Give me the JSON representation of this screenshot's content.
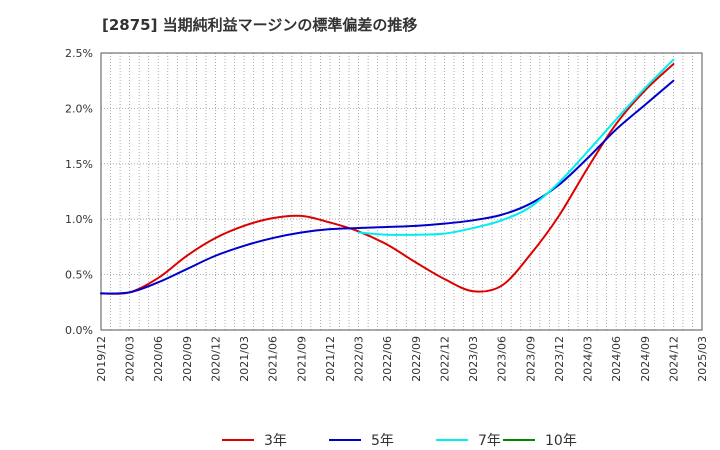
{
  "chart_data": {
    "type": "line",
    "title": "[2875]  当期純利益マージンの標準偏差の推移",
    "xlabel": "",
    "ylabel": "",
    "ylim": [
      0,
      2.5
    ],
    "yticks": [
      "0.0%",
      "0.5%",
      "1.0%",
      "1.5%",
      "2.0%",
      "2.5%"
    ],
    "grid": true,
    "legend_position": "bottom",
    "x_start": "2019/12",
    "x_end": "2025/03",
    "xticks": [
      "2019/12",
      "2020/03",
      "2020/06",
      "2020/09",
      "2020/12",
      "2021/03",
      "2021/06",
      "2021/09",
      "2021/12",
      "2022/03",
      "2022/06",
      "2022/09",
      "2022/12",
      "2023/03",
      "2023/06",
      "2023/09",
      "2023/12",
      "2024/03",
      "2024/06",
      "2024/09",
      "2024/12",
      "2025/03"
    ],
    "series": [
      {
        "name": "3年",
        "color": "#dd0000",
        "points": [
          [
            "2019/12",
            0.33
          ],
          [
            "2020/03",
            0.34
          ],
          [
            "2020/06",
            0.47
          ],
          [
            "2020/09",
            0.67
          ],
          [
            "2020/12",
            0.83
          ],
          [
            "2021/03",
            0.94
          ],
          [
            "2021/06",
            1.01
          ],
          [
            "2021/09",
            1.03
          ],
          [
            "2021/12",
            0.97
          ],
          [
            "2022/03",
            0.89
          ],
          [
            "2022/06",
            0.77
          ],
          [
            "2022/09",
            0.61
          ],
          [
            "2022/12",
            0.46
          ],
          [
            "2023/03",
            0.35
          ],
          [
            "2023/06",
            0.4
          ],
          [
            "2023/09",
            0.68
          ],
          [
            "2023/12",
            1.03
          ],
          [
            "2024/03",
            1.46
          ],
          [
            "2024/06",
            1.86
          ],
          [
            "2024/09",
            2.16
          ],
          [
            "2024/12",
            2.4
          ]
        ]
      },
      {
        "name": "5年",
        "color": "#0000cc",
        "points": [
          [
            "2019/12",
            0.33
          ],
          [
            "2020/03",
            0.34
          ],
          [
            "2020/06",
            0.43
          ],
          [
            "2020/09",
            0.55
          ],
          [
            "2020/12",
            0.67
          ],
          [
            "2021/03",
            0.76
          ],
          [
            "2021/06",
            0.83
          ],
          [
            "2021/09",
            0.88
          ],
          [
            "2021/12",
            0.91
          ],
          [
            "2022/03",
            0.92
          ],
          [
            "2022/06",
            0.93
          ],
          [
            "2022/09",
            0.94
          ],
          [
            "2022/12",
            0.96
          ],
          [
            "2023/03",
            0.99
          ],
          [
            "2023/06",
            1.04
          ],
          [
            "2023/09",
            1.14
          ],
          [
            "2023/12",
            1.31
          ],
          [
            "2024/03",
            1.55
          ],
          [
            "2024/06",
            1.81
          ],
          [
            "2024/09",
            2.03
          ],
          [
            "2024/12",
            2.25
          ]
        ]
      },
      {
        "name": "7年",
        "color": "#00eeee",
        "points": [
          [
            "2022/03",
            0.88
          ],
          [
            "2022/06",
            0.86
          ],
          [
            "2022/09",
            0.86
          ],
          [
            "2022/12",
            0.87
          ],
          [
            "2023/03",
            0.92
          ],
          [
            "2023/06",
            0.99
          ],
          [
            "2023/09",
            1.11
          ],
          [
            "2023/12",
            1.33
          ],
          [
            "2024/03",
            1.61
          ],
          [
            "2024/06",
            1.9
          ],
          [
            "2024/09",
            2.18
          ],
          [
            "2024/12",
            2.44
          ]
        ]
      },
      {
        "name": "10年",
        "color": "#008800",
        "points": []
      }
    ]
  }
}
